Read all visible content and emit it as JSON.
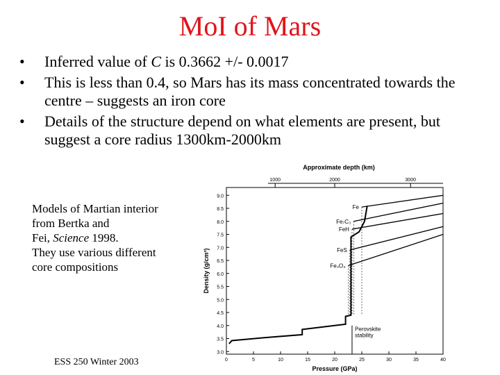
{
  "slide": {
    "title": "MoI of Mars",
    "bullets": [
      {
        "pre": "Inferred value of ",
        "emph": "C",
        "post": " is 0.3662 +/- 0.0017"
      },
      {
        "pre": "This is less than 0.4, so Mars has its mass concentrated towards the centre – suggests an iron core",
        "emph": "",
        "post": ""
      },
      {
        "pre": "Details of the structure depend on what elements are present, but suggest a core radius 1300km-2000km",
        "emph": "",
        "post": ""
      }
    ],
    "bullet_glyph": "•",
    "caption": {
      "line1": "Models of Martian interior",
      "line2": "from Bertka and",
      "line3_pre": "Fei, ",
      "line3_emph": "Science",
      "line3_post": " 1998.",
      "line4": "They use various different",
      "line5": "core compositions"
    },
    "footer": "ESS 250 Winter 2003"
  },
  "colors": {
    "title": "#e0141b",
    "text": "#000000"
  },
  "chart_data": {
    "type": "line",
    "xlabel": "Pressure (GPa)",
    "ylabel": "Density (g/cm³)",
    "top_axis_label": "Approximate depth (km)",
    "x_ticks": [
      0,
      5,
      10,
      15,
      20,
      25,
      30,
      35,
      40
    ],
    "y_ticks": [
      3.0,
      3.5,
      4.0,
      4.5,
      5.0,
      5.5,
      6.0,
      6.5,
      7.0,
      7.5,
      8.0,
      8.5,
      9.0
    ],
    "top_ticks": [
      1000,
      2000,
      3000
    ],
    "top_tick_pressures": [
      9,
      20,
      34
    ],
    "xlim": [
      0,
      40
    ],
    "ylim": [
      2.9,
      9.3
    ],
    "series": [
      {
        "name": "Fe",
        "points": [
          [
            25,
            8.55
          ],
          [
            40,
            9.0
          ]
        ]
      },
      {
        "name": "Fe₇C₃",
        "points": [
          [
            23.5,
            8.0
          ],
          [
            40,
            8.7
          ]
        ]
      },
      {
        "name": "FeH",
        "points": [
          [
            23.2,
            7.7
          ],
          [
            40,
            8.3
          ]
        ]
      },
      {
        "name": "FeS",
        "points": [
          [
            22.8,
            6.9
          ],
          [
            40,
            7.8
          ]
        ]
      },
      {
        "name": "Fe₃O₄",
        "points": [
          [
            22.5,
            6.3
          ],
          [
            40,
            7.5
          ]
        ]
      },
      {
        "name": "mantle",
        "points": [
          [
            0.5,
            3.3
          ],
          [
            1,
            3.42
          ],
          [
            8,
            3.55
          ],
          [
            14,
            3.65
          ],
          [
            14,
            3.85
          ],
          [
            18,
            3.95
          ],
          [
            22,
            4.05
          ],
          [
            22,
            4.35
          ],
          [
            23,
            4.4
          ],
          [
            23,
            7.4
          ],
          [
            24.5,
            7.6
          ],
          [
            25.5,
            8.0
          ],
          [
            26,
            8.6
          ]
        ]
      }
    ],
    "annotation": "Perovskite stability",
    "annotation_pressure": 23.2
  }
}
